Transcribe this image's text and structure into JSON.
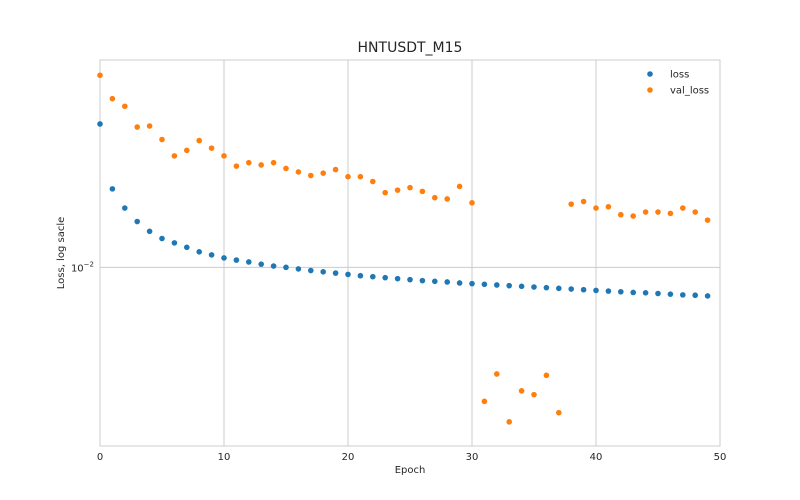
{
  "chart_data": {
    "type": "scatter",
    "title": "HNTUSDT_M15",
    "xlabel": "Epoch",
    "ylabel": "Loss, log sacle",
    "yscale": "log",
    "xlim": [
      0,
      50
    ],
    "ylim": [
      0.0057,
      0.0192
    ],
    "xticks": [
      0,
      10,
      20,
      30,
      40,
      50
    ],
    "yticks": [
      {
        "value": 0.01,
        "label_base": "10",
        "label_exp": "−2"
      }
    ],
    "grid": true,
    "legend_position": "top-right",
    "series": [
      {
        "name": "loss",
        "color": "#1f77b4",
        "x": [
          0,
          1,
          2,
          3,
          4,
          5,
          6,
          7,
          8,
          9,
          10,
          11,
          12,
          13,
          14,
          15,
          16,
          17,
          18,
          19,
          20,
          21,
          22,
          23,
          24,
          25,
          26,
          27,
          28,
          29,
          30,
          31,
          32,
          33,
          34,
          35,
          36,
          37,
          38,
          39,
          40,
          41,
          42,
          43,
          44,
          45,
          46,
          47,
          48,
          49
        ],
        "y": [
          0.0157,
          0.0128,
          0.01205,
          0.01155,
          0.0112,
          0.01095,
          0.0108,
          0.01065,
          0.0105,
          0.0104,
          0.0103,
          0.01023,
          0.01017,
          0.0101,
          0.01004,
          0.01,
          0.00995,
          0.0099,
          0.00986,
          0.00982,
          0.00978,
          0.00974,
          0.00971,
          0.00968,
          0.00965,
          0.00962,
          0.00959,
          0.00957,
          0.00955,
          0.00952,
          0.0095,
          0.00948,
          0.00946,
          0.00944,
          0.00942,
          0.0094,
          0.00938,
          0.00936,
          0.00934,
          0.00932,
          0.0093,
          0.00928,
          0.00926,
          0.00924,
          0.00923,
          0.00921,
          0.00919,
          0.00917,
          0.00916,
          0.00914
        ]
      },
      {
        "name": "val_loss",
        "color": "#ff7f0e",
        "x": [
          0,
          1,
          2,
          3,
          4,
          5,
          6,
          7,
          8,
          9,
          10,
          11,
          12,
          13,
          14,
          15,
          16,
          17,
          18,
          19,
          20,
          21,
          22,
          23,
          24,
          25,
          26,
          27,
          28,
          29,
          30,
          31,
          32,
          33,
          34,
          35,
          36,
          37,
          38,
          39,
          40,
          41,
          42,
          43,
          44,
          45,
          46,
          47,
          48,
          49
        ],
        "y": [
          0.0183,
          0.017,
          0.0166,
          0.01555,
          0.0156,
          0.01495,
          0.0142,
          0.01445,
          0.0149,
          0.01455,
          0.0142,
          0.01375,
          0.0139,
          0.0138,
          0.0139,
          0.01365,
          0.0135,
          0.01335,
          0.01345,
          0.0136,
          0.0133,
          0.0133,
          0.0131,
          0.01265,
          0.01275,
          0.01285,
          0.0127,
          0.01245,
          0.0124,
          0.0129,
          0.01225,
          0.00656,
          0.00715,
          0.00615,
          0.00678,
          0.0067,
          0.00712,
          0.00633,
          0.0122,
          0.0123,
          0.01205,
          0.0121,
          0.0118,
          0.01175,
          0.0119,
          0.0119,
          0.01185,
          0.01205,
          0.0119,
          0.0116
        ]
      }
    ]
  }
}
